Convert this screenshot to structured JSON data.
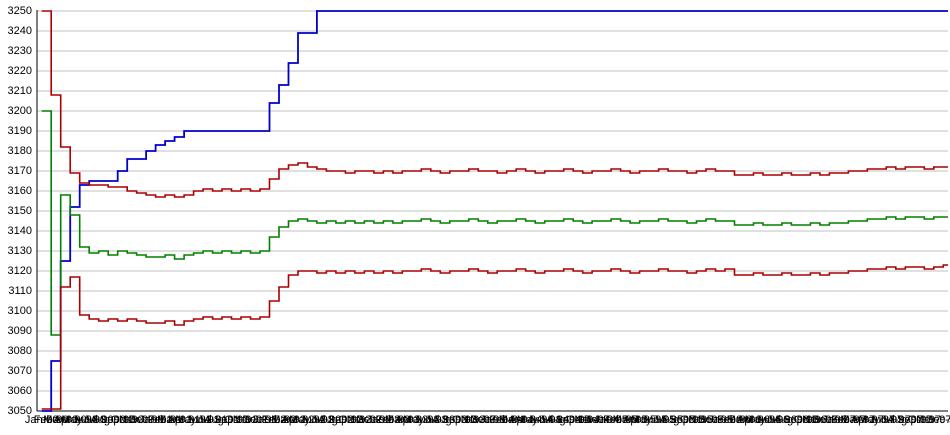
{
  "chart_data": {
    "type": "line",
    "title": "",
    "xlabel": "",
    "ylabel": "",
    "legend": "none",
    "grid": "horizontal",
    "background": "#FFFFFF",
    "gridline_color": "#C0C0C0",
    "axis_color": "#000000",
    "ylim": [
      3050,
      3250
    ],
    "ytick_step": 10,
    "yticks": [
      3250,
      3240,
      3230,
      3220,
      3210,
      3200,
      3190,
      3180,
      3170,
      3160,
      3150,
      3140,
      3130,
      3120,
      3110,
      3100,
      3090,
      3080,
      3070,
      3060,
      3050
    ],
    "x_categories": [
      "Jan-90",
      "Feb-90",
      "Mar-90",
      "Apr-90",
      "May-90",
      "Jun-90",
      "Jul-90",
      "Aug-90",
      "Sep-90",
      "Oct-90",
      "Nov-90",
      "Dec-90",
      "Jan-91",
      "Feb-91",
      "Mar-91",
      "Apr-91",
      "May-91",
      "Jun-91",
      "Jul-91",
      "Aug-91",
      "Sep-91",
      "Oct-91",
      "Nov-91",
      "Dec-91",
      "Jan-92",
      "Feb-92",
      "Mar-92",
      "Apr-92",
      "May-92",
      "Jun-92",
      "Jul-92",
      "Aug-92",
      "Sep-92",
      "Oct-92",
      "Nov-92",
      "Dec-92",
      "Jan-93",
      "Feb-93",
      "Mar-93",
      "Apr-93",
      "May-93",
      "Jun-93",
      "Jul-93",
      "Aug-93",
      "Sep-93",
      "Oct-93",
      "Nov-93",
      "Dec-93",
      "Jan-94",
      "Feb-94",
      "Mar-94",
      "Apr-94",
      "May-94",
      "Jun-94",
      "Jul-94",
      "Aug-94",
      "Sep-94",
      "Oct-94",
      "Nov-94",
      "Dec-94",
      "Jan-95",
      "Feb-95",
      "Mar-95",
      "Apr-95",
      "May-95",
      "Jun-95",
      "Jul-95",
      "Aug-95",
      "Sep-95",
      "Oct-95",
      "Nov-95",
      "Dec-95",
      "Jan-96",
      "Feb-96",
      "Mar-96",
      "Apr-96",
      "May-96",
      "Jun-96",
      "Jul-96",
      "Aug-96",
      "Sep-96",
      "Oct-96",
      "Nov-96",
      "Dec-96",
      "Jan-97",
      "Feb-97",
      "Mar-97",
      "Apr-97",
      "May-97",
      "Jun-97",
      "Jul-97",
      "Aug-97",
      "Sep-97",
      "Oct-97",
      "Nov-97",
      "Dec-97"
    ],
    "series": [
      {
        "name": "blue",
        "color": "#0000CC",
        "width": 1.8,
        "values": [
          3050,
          3075,
          3125,
          3152,
          3163,
          3165,
          3165,
          3165,
          3170,
          3176,
          3176,
          3180,
          3183,
          3185,
          3187,
          3190,
          3190,
          3190,
          3190,
          3190,
          3190,
          3190,
          3190,
          3190,
          3204,
          3213,
          3224,
          3239,
          3239,
          3250,
          3250,
          3250,
          3250,
          3250,
          3250,
          3250,
          3250,
          3250,
          3250,
          3250,
          3250,
          3250,
          3250,
          3250,
          3250,
          3250,
          3250,
          3250,
          3250,
          3250,
          3250,
          3250,
          3250,
          3250,
          3250,
          3250,
          3250,
          3250,
          3250,
          3250,
          3250,
          3250,
          3250,
          3250,
          3250,
          3250,
          3250,
          3250,
          3250,
          3250,
          3250,
          3250,
          3250,
          3250,
          3250,
          3250,
          3250,
          3250,
          3250,
          3250,
          3250,
          3250,
          3250,
          3250,
          3250,
          3250,
          3250,
          3250,
          3250,
          3250,
          3250,
          3250,
          3250,
          3250,
          3250,
          3250
        ]
      },
      {
        "name": "dark-red-upper",
        "color": "#AA0000",
        "width": 1.6,
        "values": [
          3250,
          3208,
          3182,
          3169,
          3164,
          3163,
          3163,
          3162,
          3162,
          3160,
          3159,
          3158,
          3157,
          3158,
          3157,
          3158,
          3160,
          3161,
          3160,
          3161,
          3160,
          3161,
          3160,
          3161,
          3166,
          3171,
          3173,
          3174,
          3172,
          3171,
          3170,
          3170,
          3169,
          3170,
          3170,
          3169,
          3170,
          3169,
          3170,
          3170,
          3171,
          3170,
          3169,
          3170,
          3170,
          3171,
          3170,
          3170,
          3169,
          3170,
          3171,
          3170,
          3169,
          3170,
          3170,
          3171,
          3170,
          3169,
          3170,
          3170,
          3171,
          3170,
          3169,
          3170,
          3170,
          3171,
          3170,
          3170,
          3169,
          3170,
          3171,
          3170,
          3170,
          3168,
          3168,
          3169,
          3168,
          3168,
          3169,
          3168,
          3168,
          3169,
          3168,
          3169,
          3169,
          3170,
          3170,
          3171,
          3171,
          3172,
          3171,
          3172,
          3172,
          3171,
          3172,
          3172
        ]
      },
      {
        "name": "green",
        "color": "#008000",
        "width": 1.6,
        "values": [
          3200,
          3088,
          3158,
          3148,
          3132,
          3129,
          3130,
          3128,
          3130,
          3129,
          3128,
          3127,
          3127,
          3128,
          3126,
          3128,
          3129,
          3130,
          3129,
          3130,
          3129,
          3130,
          3129,
          3130,
          3137,
          3142,
          3145,
          3146,
          3145,
          3144,
          3145,
          3144,
          3145,
          3144,
          3145,
          3144,
          3145,
          3144,
          3145,
          3145,
          3146,
          3145,
          3144,
          3145,
          3145,
          3146,
          3145,
          3144,
          3145,
          3145,
          3146,
          3145,
          3144,
          3145,
          3145,
          3146,
          3145,
          3144,
          3145,
          3145,
          3146,
          3145,
          3144,
          3145,
          3145,
          3146,
          3145,
          3145,
          3144,
          3145,
          3146,
          3145,
          3145,
          3143,
          3143,
          3144,
          3143,
          3143,
          3144,
          3143,
          3143,
          3144,
          3143,
          3144,
          3144,
          3145,
          3145,
          3146,
          3146,
          3147,
          3146,
          3147,
          3147,
          3146,
          3147,
          3147
        ]
      },
      {
        "name": "dark-red-lower",
        "color": "#AA0000",
        "width": 1.6,
        "values": [
          3051,
          3051,
          3112,
          3117,
          3098,
          3096,
          3095,
          3096,
          3095,
          3096,
          3095,
          3094,
          3094,
          3095,
          3093,
          3095,
          3096,
          3097,
          3096,
          3097,
          3096,
          3097,
          3096,
          3097,
          3105,
          3112,
          3118,
          3120,
          3120,
          3119,
          3120,
          3119,
          3120,
          3119,
          3120,
          3119,
          3120,
          3119,
          3120,
          3120,
          3121,
          3120,
          3119,
          3120,
          3120,
          3121,
          3120,
          3119,
          3120,
          3120,
          3121,
          3120,
          3119,
          3120,
          3120,
          3121,
          3120,
          3119,
          3120,
          3120,
          3121,
          3120,
          3119,
          3120,
          3120,
          3121,
          3120,
          3120,
          3119,
          3120,
          3121,
          3120,
          3121,
          3118,
          3118,
          3119,
          3118,
          3118,
          3119,
          3118,
          3118,
          3119,
          3118,
          3119,
          3119,
          3120,
          3120,
          3121,
          3121,
          3122,
          3121,
          3122,
          3122,
          3121,
          3122,
          3123
        ]
      }
    ]
  }
}
